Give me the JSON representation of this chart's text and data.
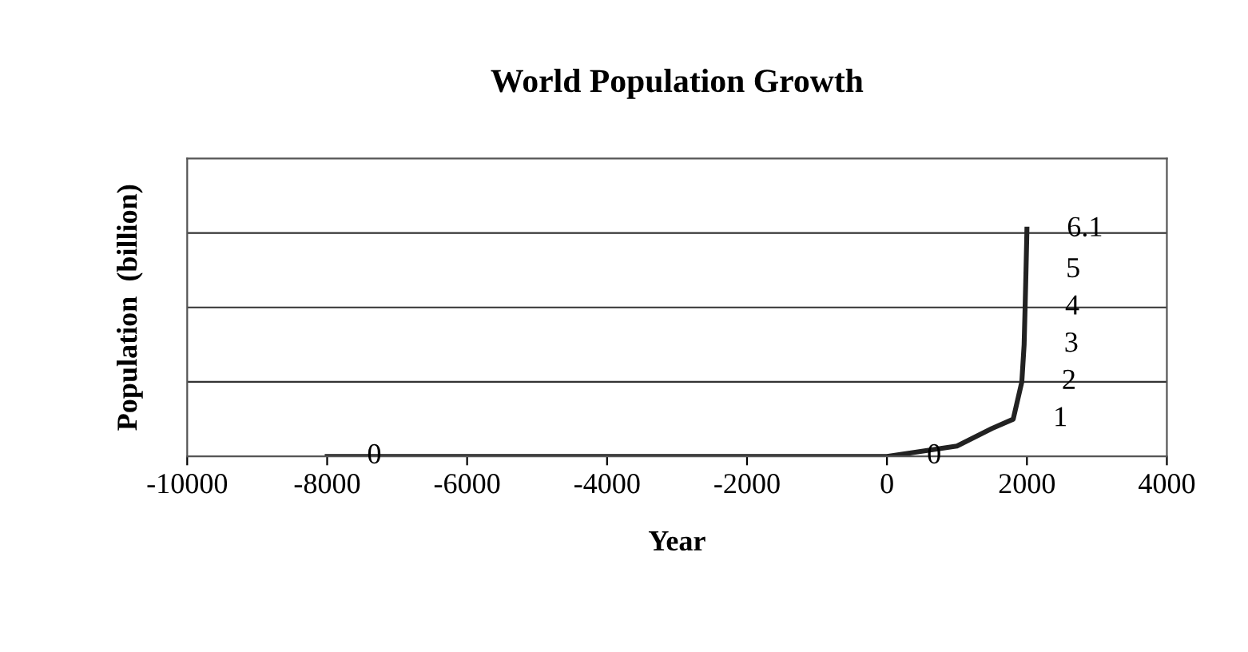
{
  "chart_data": {
    "type": "line",
    "title": "World Population Growth",
    "xlabel": "Year",
    "ylabel": "Population  (billion)",
    "x": [
      -8000,
      0,
      1000,
      1500,
      1804,
      1927,
      1960,
      1974,
      1987,
      1999,
      2000
    ],
    "series": [
      {
        "color": "#222222",
        "values": [
          0,
          0,
          0.28,
          0.75,
          1,
          2,
          3,
          4,
          5,
          6,
          6.1
        ],
        "value_labels": [
          "0",
          "0",
          null,
          null,
          "1",
          "2",
          "3",
          "4",
          "5",
          null,
          "6.1"
        ]
      }
    ],
    "xlim": [
      -10000,
      4000
    ],
    "xticks": [
      -10000,
      -8000,
      -6000,
      -4000,
      -2000,
      0,
      2000,
      4000
    ],
    "ylim": [
      0,
      8
    ],
    "yticks": [
      {
        "value": 0,
        "label": null
      },
      {
        "value": 2,
        "label": null
      },
      {
        "value": 4,
        "label": null
      },
      {
        "value": 6,
        "label": null
      }
    ],
    "tick_labels": "x",
    "grid": "y",
    "legend": false,
    "marker": "none",
    "line_style": "solid"
  }
}
